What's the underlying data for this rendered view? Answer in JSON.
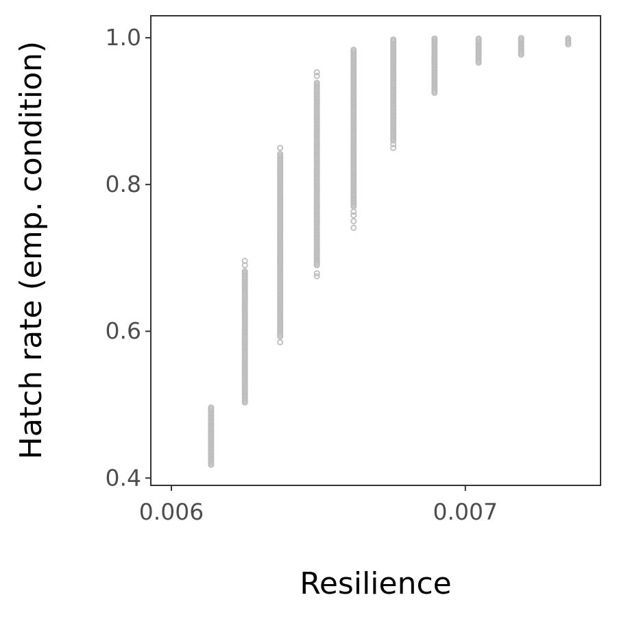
{
  "chart_data": {
    "type": "scatter",
    "title": "",
    "xlabel": "Resilience",
    "ylabel": "Hatch rate (emp. condition)",
    "xlim": [
      0.00593,
      0.00746
    ],
    "ylim": [
      0.39,
      1.03
    ],
    "x_ticks": [
      0.006,
      0.007
    ],
    "x_tick_labels": [
      "0.006",
      "0.007"
    ],
    "y_ticks": [
      0.4,
      0.6,
      0.8,
      1.0
    ],
    "y_tick_labels": [
      "0.4",
      "0.6",
      "0.8",
      "1.0"
    ],
    "grid": false,
    "legend": "none",
    "point_color": "#bdbdbd",
    "series": [
      {
        "columns": [
          {
            "x": 0.006135,
            "ymin": 0.418,
            "ymax": 0.498,
            "outliers": []
          },
          {
            "x": 0.00625,
            "ymin": 0.503,
            "ymax": 0.682,
            "outliers": [
              0.69,
              0.696
            ]
          },
          {
            "x": 0.00637,
            "ymin": 0.593,
            "ymax": 0.843,
            "outliers": [
              0.585,
              0.85
            ]
          },
          {
            "x": 0.006495,
            "ymin": 0.69,
            "ymax": 0.94,
            "outliers": [
              0.675,
              0.679,
              0.948,
              0.953
            ]
          },
          {
            "x": 0.00662,
            "ymin": 0.77,
            "ymax": 0.985,
            "outliers": [
              0.741,
              0.75,
              0.758,
              0.763
            ]
          },
          {
            "x": 0.006755,
            "ymin": 0.86,
            "ymax": 0.998,
            "outliers": [
              0.85,
              0.855
            ]
          },
          {
            "x": 0.006895,
            "ymin": 0.925,
            "ymax": 0.999,
            "outliers": []
          },
          {
            "x": 0.007045,
            "ymin": 0.966,
            "ymax": 1.0,
            "outliers": []
          },
          {
            "x": 0.00719,
            "ymin": 0.977,
            "ymax": 1.0,
            "outliers": []
          },
          {
            "x": 0.00735,
            "ymin": 0.991,
            "ymax": 1.0,
            "outliers": []
          }
        ]
      }
    ]
  }
}
